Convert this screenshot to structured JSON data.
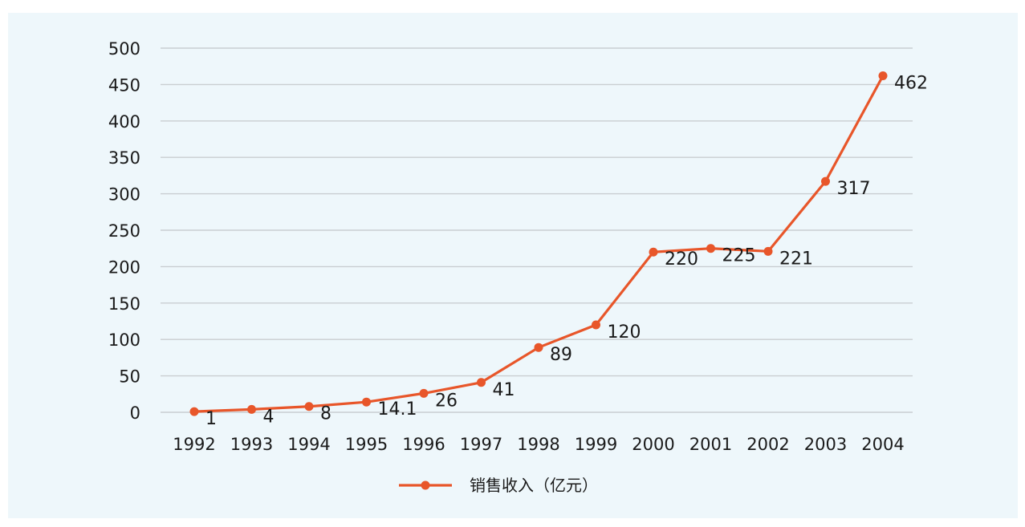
{
  "chart_data": {
    "type": "line",
    "title": "",
    "xlabel": "",
    "ylabel": "",
    "categories": [
      "1992",
      "1993",
      "1994",
      "1995",
      "1996",
      "1997",
      "1998",
      "1999",
      "2000",
      "2001",
      "2002",
      "2003",
      "2004"
    ],
    "series": [
      {
        "name": "销售收入（亿元）",
        "values": [
          1,
          4,
          8,
          14.1,
          26,
          41,
          89,
          120,
          220,
          225,
          221,
          317,
          462
        ],
        "data_labels": [
          "1",
          "4",
          "8",
          "14.1",
          "26",
          "41",
          "89",
          "120",
          "220",
          "225",
          "221",
          "317",
          "462"
        ],
        "color": "#e8562a"
      }
    ],
    "ylim": [
      0,
      500
    ],
    "yticks": [
      0,
      50,
      100,
      150,
      200,
      250,
      300,
      350,
      400,
      450,
      500
    ],
    "ytick_labels": [
      "0",
      "50",
      "100",
      "150",
      "200",
      "250",
      "300",
      "350",
      "400",
      "450",
      "500"
    ],
    "grid": true,
    "legend_position": "bottom",
    "colors": {
      "background": "#eef7fb",
      "gridline": "#c9ced1",
      "line": "#e8562a",
      "text": "#1a1a1a"
    }
  }
}
